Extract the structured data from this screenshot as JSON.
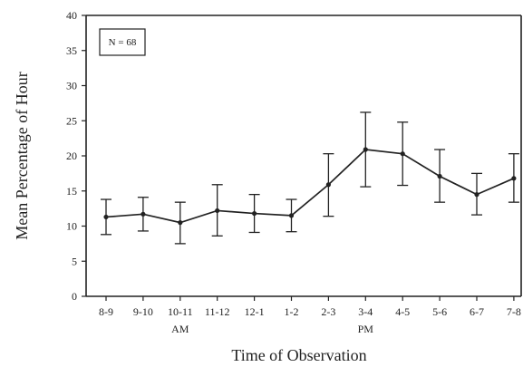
{
  "chart_data": {
    "type": "line",
    "title": "",
    "xlabel": "Time of Observation",
    "ylabel": "Mean Percentage of Hour",
    "ylim": [
      0,
      40
    ],
    "yticks": [
      0,
      5,
      10,
      15,
      20,
      25,
      30,
      35,
      40
    ],
    "categories": [
      "8-9",
      "9-10",
      "10-11",
      "11-12",
      "12-1",
      "1-2",
      "2-3",
      "3-4",
      "4-5",
      "5-6",
      "6-7",
      "7-8"
    ],
    "series": [
      {
        "values": [
          11.3,
          11.7,
          10.5,
          12.2,
          11.8,
          11.5,
          15.9,
          20.9,
          20.3,
          17.1,
          14.5,
          16.8
        ],
        "err_low": [
          8.8,
          9.3,
          7.5,
          8.6,
          9.1,
          9.2,
          11.4,
          15.6,
          15.8,
          13.4,
          11.6,
          13.4
        ],
        "err_high": [
          13.8,
          14.1,
          13.4,
          15.9,
          14.5,
          13.8,
          20.3,
          26.2,
          24.8,
          20.9,
          17.5,
          20.3
        ]
      }
    ],
    "period_labels": [
      {
        "text": "AM",
        "category": "10-11"
      },
      {
        "text": "PM",
        "category": "3-4"
      }
    ],
    "annotation": "N = 68",
    "grid": false,
    "legend": "none"
  }
}
